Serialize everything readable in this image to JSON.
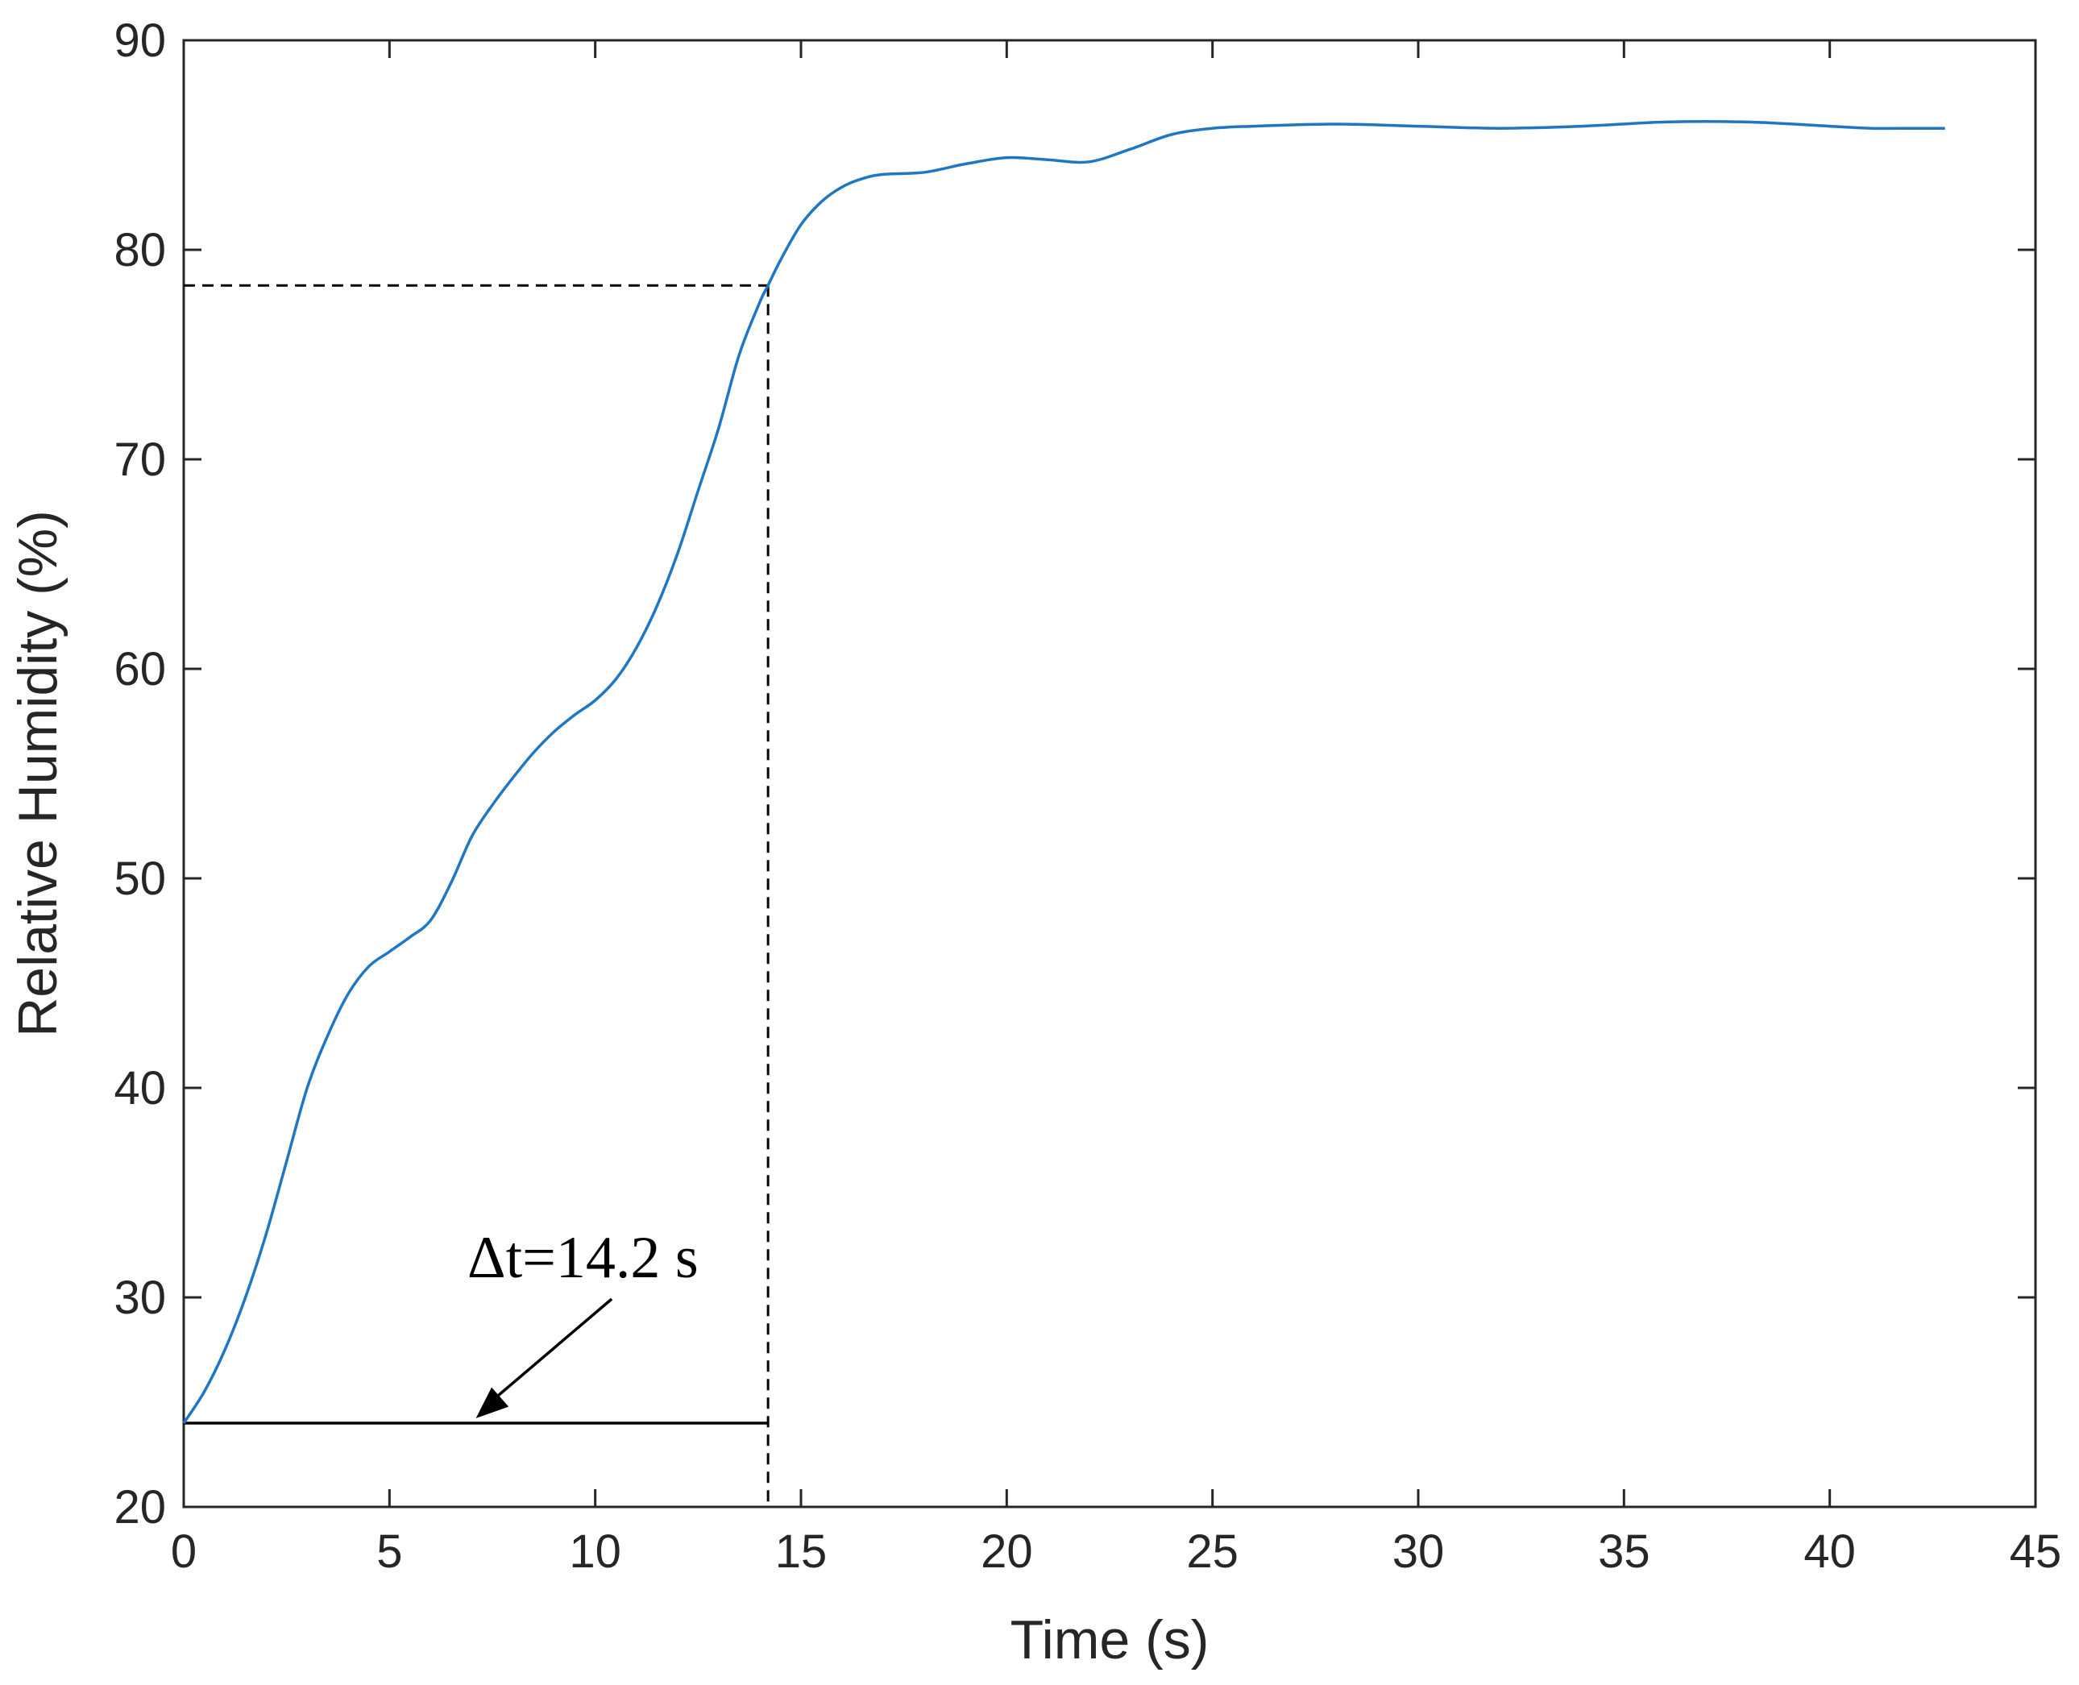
{
  "chart_data": {
    "type": "line",
    "xlabel": "Time (s)",
    "ylabel": "Relative Humidity (%)",
    "xlim": [
      0,
      45
    ],
    "ylim": [
      20,
      90
    ],
    "xticks": [
      0,
      5,
      10,
      15,
      20,
      25,
      30,
      35,
      40,
      45
    ],
    "yticks": [
      20,
      30,
      40,
      50,
      60,
      70,
      80,
      90
    ],
    "grid": false,
    "series": [
      {
        "color": "#1f77c4",
        "x": [
          0,
          0.5,
          1,
          1.5,
          2,
          2.5,
          3,
          3.5,
          4,
          4.5,
          5,
          5.5,
          6,
          6.5,
          7,
          7.5,
          8,
          8.5,
          9,
          9.5,
          10,
          10.5,
          11,
          11.5,
          12,
          12.5,
          13,
          13.5,
          14,
          14.2,
          14.5,
          15,
          15.5,
          16,
          16.5,
          17,
          18,
          19,
          20,
          21,
          22,
          23,
          24,
          25,
          26,
          28,
          30,
          32,
          34,
          36,
          38,
          40,
          41,
          42,
          42.8
        ],
        "y": [
          24,
          25.5,
          27.5,
          30,
          33,
          36.5,
          40,
          42.5,
          44.5,
          45.8,
          46.5,
          47.2,
          48,
          49.8,
          52,
          53.5,
          54.8,
          56,
          57,
          57.8,
          58.5,
          59.5,
          61,
          63,
          65.5,
          68.5,
          71.5,
          75,
          77.5,
          78.3,
          79.5,
          81.2,
          82.3,
          83,
          83.4,
          83.6,
          83.7,
          84.1,
          84.4,
          84.3,
          84.2,
          84.8,
          85.5,
          85.8,
          85.9,
          86,
          85.9,
          85.8,
          85.9,
          86.1,
          86.1,
          85.9,
          85.8,
          85.8,
          85.8
        ]
      }
    ],
    "annotations": [
      {
        "text": "Δt=14.2 s"
      }
    ],
    "guides": {
      "start_y": 24,
      "end_x": 14.2,
      "end_y": 78.3
    }
  }
}
